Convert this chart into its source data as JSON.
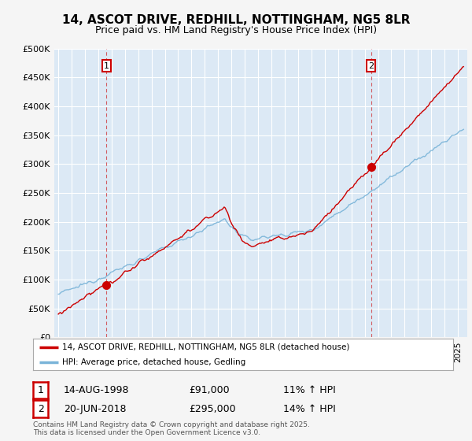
{
  "title_line1": "14, ASCOT DRIVE, REDHILL, NOTTINGHAM, NG5 8LR",
  "title_line2": "Price paid vs. HM Land Registry's House Price Index (HPI)",
  "legend_label1": "14, ASCOT DRIVE, REDHILL, NOTTINGHAM, NG5 8LR (detached house)",
  "legend_label2": "HPI: Average price, detached house, Gedling",
  "annotation1_date": "14-AUG-1998",
  "annotation1_price": "£91,000",
  "annotation1_hpi": "11% ↑ HPI",
  "annotation2_date": "20-JUN-2018",
  "annotation2_price": "£295,000",
  "annotation2_hpi": "14% ↑ HPI",
  "footer": "Contains HM Land Registry data © Crown copyright and database right 2025.\nThis data is licensed under the Open Government Licence v3.0.",
  "line1_color": "#cc0000",
  "line2_color": "#7ab4d8",
  "plot_bg_color": "#dce9f5",
  "fig_bg_color": "#f5f5f5",
  "grid_color": "#ffffff",
  "ylim": [
    0,
    500000
  ],
  "yticks": [
    0,
    50000,
    100000,
    150000,
    200000,
    250000,
    300000,
    350000,
    400000,
    450000,
    500000
  ],
  "ytick_labels": [
    "£0",
    "£50K",
    "£100K",
    "£150K",
    "£200K",
    "£250K",
    "£300K",
    "£350K",
    "£400K",
    "£450K",
    "£500K"
  ],
  "purchase1_x": 1998.62,
  "purchase1_y": 91000,
  "purchase2_x": 2018.47,
  "purchase2_y": 295000,
  "xlim_left": 1994.7,
  "xlim_right": 2025.7
}
